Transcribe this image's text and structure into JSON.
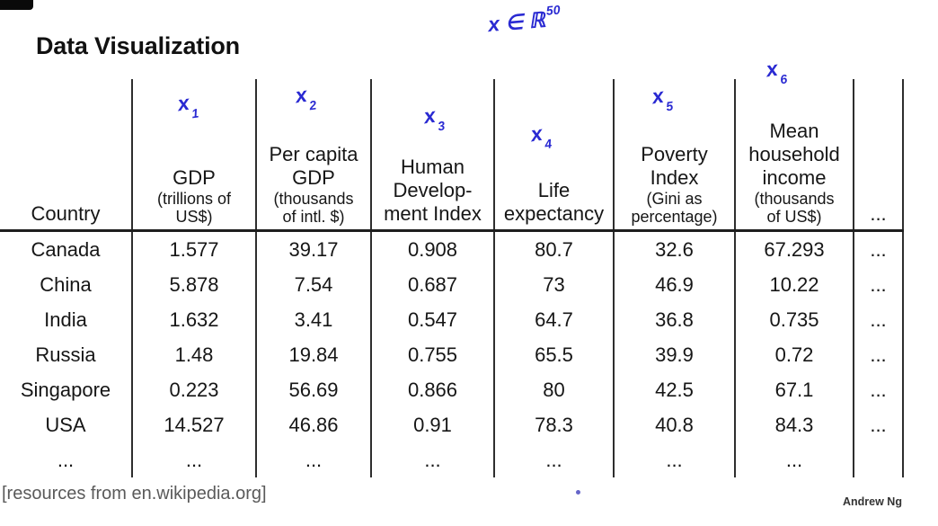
{
  "title": "Data Visualization",
  "handwritten": {
    "formula_base": "x ∈ ℝ",
    "formula_sup": "50",
    "annotations": [
      {
        "base": "x",
        "sub": "1"
      },
      {
        "base": "x",
        "sub": "2"
      },
      {
        "base": "x",
        "sub": "3"
      },
      {
        "base": "x",
        "sub": "4"
      },
      {
        "base": "x",
        "sub": "5"
      },
      {
        "base": "x",
        "sub": "6"
      }
    ]
  },
  "table": {
    "columns": [
      {
        "id": "country",
        "main": [
          "Country"
        ],
        "unit": []
      },
      {
        "id": "gdp",
        "main": [
          "GDP"
        ],
        "unit": [
          "(trillions of",
          "US$)"
        ]
      },
      {
        "id": "per-capita-gdp",
        "main": [
          "Per capita",
          "GDP"
        ],
        "unit": [
          "(thousands",
          "of intl. $)"
        ]
      },
      {
        "id": "human-development-index",
        "main": [
          "Human",
          "Develop-",
          "ment Index"
        ],
        "unit": []
      },
      {
        "id": "life-expectancy",
        "main": [
          "Life",
          "expectancy"
        ],
        "unit": []
      },
      {
        "id": "poverty-index",
        "main": [
          "Poverty",
          "Index"
        ],
        "unit": [
          "(Gini as",
          "percentage)"
        ]
      },
      {
        "id": "mean-household-income",
        "main": [
          "Mean",
          "household",
          "income"
        ],
        "unit": [
          "(thousands",
          "of US$)"
        ]
      },
      {
        "id": "more-columns",
        "main": [
          "..."
        ],
        "unit": []
      }
    ],
    "rows": [
      [
        "Canada",
        "1.577",
        "39.17",
        "0.908",
        "80.7",
        "32.6",
        "67.293",
        "..."
      ],
      [
        "China",
        "5.878",
        "7.54",
        "0.687",
        "73",
        "46.9",
        "10.22",
        "..."
      ],
      [
        "India",
        "1.632",
        "3.41",
        "0.547",
        "64.7",
        "36.8",
        "0.735",
        "..."
      ],
      [
        "Russia",
        "1.48",
        "19.84",
        "0.755",
        "65.5",
        "39.9",
        "0.72",
        "..."
      ],
      [
        "Singapore",
        "0.223",
        "56.69",
        "0.866",
        "80",
        "42.5",
        "67.1",
        "..."
      ],
      [
        "USA",
        "14.527",
        "46.86",
        "0.91",
        "78.3",
        "40.8",
        "84.3",
        "..."
      ],
      [
        "...",
        "...",
        "...",
        "...",
        "...",
        "...",
        "...",
        ""
      ]
    ]
  },
  "footer": {
    "source": "[resources from en.wikipedia.org]",
    "credit": "Andrew Ng"
  },
  "colors": {
    "ink_blue": "#2a2ad2",
    "text": "#161616",
    "line": "#2e2e2e",
    "muted_gray": "#5a5a5a"
  }
}
